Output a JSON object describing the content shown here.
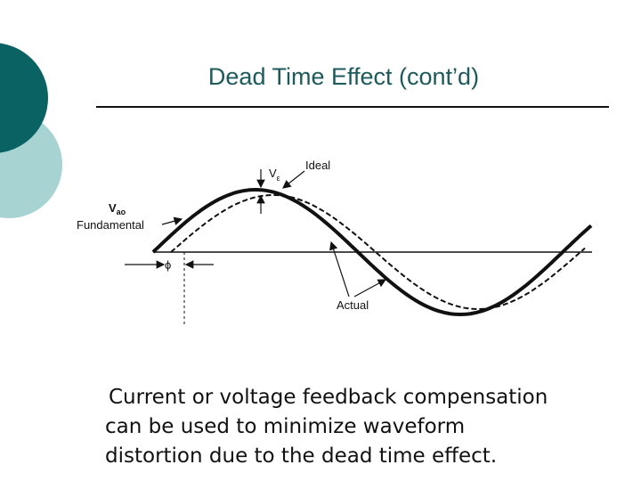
{
  "title": "Dead Time Effect (cont’d)",
  "diagram": {
    "labels": {
      "verror": {
        "main": "V",
        "sub": "ε"
      },
      "ideal": "Ideal",
      "vao": {
        "main": "V",
        "sub": "ao"
      },
      "fundamental": "Fundamental",
      "phi": "ϕ",
      "actual": "Actual"
    }
  },
  "body": {
    "lines": [
      "Current or voltage feedback compensation",
      "can be used to minimize waveform",
      "distortion due to the dead time effect."
    ]
  }
}
